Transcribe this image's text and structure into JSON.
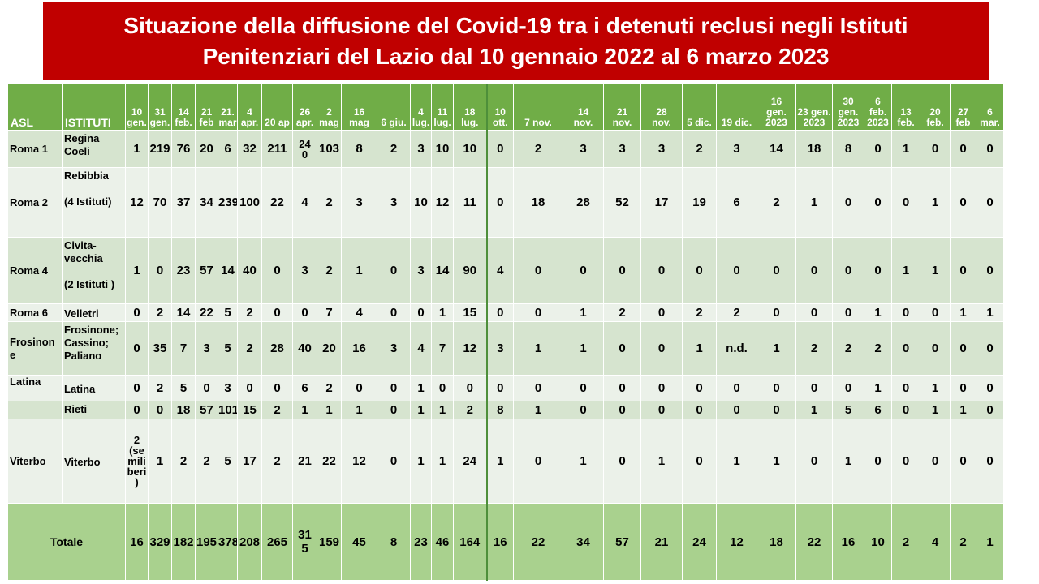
{
  "title": {
    "line1": "Situazione della diffusione del Covid-19 tra i detenuti reclusi negli Istituti",
    "line2": "Penitenziari  del Lazio dal 10 gennaio 2022 al 6 marzo 2023"
  },
  "colors": {
    "title_bg": "#c00000",
    "header_bg": "#70ad47",
    "row_dark": "#d6e4cf",
    "row_light": "#ebf1e9",
    "total_bg": "#a9d18e"
  },
  "header": {
    "asl": "ASL",
    "istituti": "ISTITUTI",
    "dates": [
      [
        "10",
        "gen."
      ],
      [
        "31",
        "gen."
      ],
      [
        "14",
        "feb."
      ],
      [
        "21",
        "feb"
      ],
      [
        "21.",
        "mar"
      ],
      [
        "4",
        "apr."
      ],
      [
        "20 ap"
      ],
      [
        "26",
        "apr."
      ],
      [
        "2",
        "mag"
      ],
      [
        "16",
        "mag"
      ],
      [
        "6 giu."
      ],
      [
        "4",
        "lug."
      ],
      [
        "11",
        "lug."
      ],
      [
        "18",
        "lug."
      ],
      [
        "10",
        "ott."
      ],
      [
        "7 nov."
      ],
      [
        "14",
        "nov."
      ],
      [
        "21",
        "nov."
      ],
      [
        "28",
        "nov."
      ],
      [
        "5 dic."
      ],
      [
        "19 dic."
      ],
      [
        "16",
        "gen.",
        "2023"
      ],
      [
        "23 gen.",
        "2023"
      ],
      [
        "30",
        "gen.",
        "2023"
      ],
      [
        "6",
        "feb.",
        "2023"
      ],
      [
        "13",
        "feb."
      ],
      [
        "20",
        "feb."
      ],
      [
        "27 feb"
      ],
      [
        "6",
        "mar."
      ]
    ]
  },
  "rows": [
    {
      "asl": "Roma 1",
      "istituti": [
        "Regina",
        "Coeli"
      ],
      "values": [
        "1",
        "219",
        "76",
        "20",
        "6",
        "32",
        "211",
        "24\n0",
        "103",
        "8",
        "2",
        "3",
        "10",
        "10",
        "0",
        "2",
        "3",
        "3",
        "3",
        "2",
        "3",
        "14",
        "18",
        "8",
        "0",
        "1",
        "0",
        "0",
        "0"
      ]
    },
    {
      "asl": "Roma 2",
      "istituti": [
        "Rebibbia",
        "",
        "(4 Istituti)"
      ],
      "values": [
        "12",
        "70",
        "37",
        "34",
        "239",
        "100",
        "22",
        "4",
        "2",
        "3",
        "3",
        "10",
        "12",
        "11",
        "0",
        "18",
        "28",
        "52",
        "17",
        "19",
        "6",
        "2",
        "1",
        "0",
        "0",
        "0",
        "1",
        "0",
        "0"
      ]
    },
    {
      "asl": "Roma 4",
      "istituti": [
        "Civita-",
        "vecchia",
        "",
        "(2 Istituti )"
      ],
      "values": [
        "1",
        "0",
        "23",
        "57",
        "14",
        "40",
        "0",
        "3",
        "2",
        "1",
        "0",
        "3",
        "14",
        "90",
        "4",
        "0",
        "0",
        "0",
        "0",
        "0",
        "0",
        "0",
        "0",
        "0",
        "0",
        "1",
        "1",
        "0",
        "0"
      ]
    },
    {
      "asl": "Roma 6",
      "istituti": [
        "Velletri"
      ],
      "values": [
        "0",
        "2",
        "14",
        "22",
        "5",
        "2",
        "0",
        "0",
        "7",
        "4",
        "0",
        "0",
        "1",
        "15",
        "0",
        "0",
        "1",
        "2",
        "0",
        "2",
        "2",
        "0",
        "0",
        "0",
        "1",
        "0",
        "0",
        "1",
        "1"
      ]
    },
    {
      "asl": "Frosinon\ne",
      "istituti": [
        "Frosinone;",
        "Cassino;",
        "Paliano"
      ],
      "values": [
        "0",
        "35",
        "7",
        "3",
        "5",
        "2",
        "28",
        "40",
        "20",
        "16",
        "3",
        "4",
        "7",
        "12",
        "3",
        "1",
        "1",
        "0",
        "0",
        "1",
        "n.d.",
        "1",
        "2",
        "2",
        "2",
        "0",
        "0",
        "0",
        "0"
      ]
    },
    {
      "asl": "Latina",
      "istituti": [
        "Latina"
      ],
      "values": [
        "0",
        "2",
        "5",
        "0",
        "3",
        "0",
        "0",
        "6",
        "2",
        "0",
        "0",
        "1",
        "0",
        "0",
        "0",
        "0",
        "0",
        "0",
        "0",
        "0",
        "0",
        "0",
        "0",
        "0",
        "1",
        "0",
        "1",
        "0",
        "0"
      ]
    },
    {
      "asl": "",
      "istituti": [
        "Rieti"
      ],
      "values": [
        "0",
        "0",
        "18",
        "57",
        "101",
        "15",
        "2",
        "1",
        "1",
        "1",
        "0",
        "1",
        "1",
        "2",
        "8",
        "1",
        "0",
        "0",
        "0",
        "0",
        "0",
        "0",
        "1",
        "5",
        "6",
        "0",
        "1",
        "1",
        "0"
      ]
    },
    {
      "asl": "Viterbo",
      "istituti": [
        "Viterbo"
      ],
      "values": [
        "2\n(se\nmili\nberi\n)",
        "1",
        "2",
        "2",
        "5",
        "17",
        "2",
        "21",
        "22",
        "12",
        "0",
        "1",
        "1",
        "24",
        "1",
        "0",
        "1",
        "0",
        "1",
        "0",
        "1",
        "1",
        "0",
        "1",
        "0",
        "0",
        "0",
        "0",
        "0"
      ]
    }
  ],
  "totals": {
    "label": "Totale",
    "values": [
      "16",
      "329",
      "182",
      "195",
      "378",
      "208",
      "265",
      "31\n5",
      "159",
      "45",
      "8",
      "23",
      "46",
      "164",
      "16",
      "22",
      "34",
      "57",
      "21",
      "24",
      "12",
      "18",
      "22",
      "16",
      "10",
      "2",
      "4",
      "2",
      "1"
    ]
  }
}
